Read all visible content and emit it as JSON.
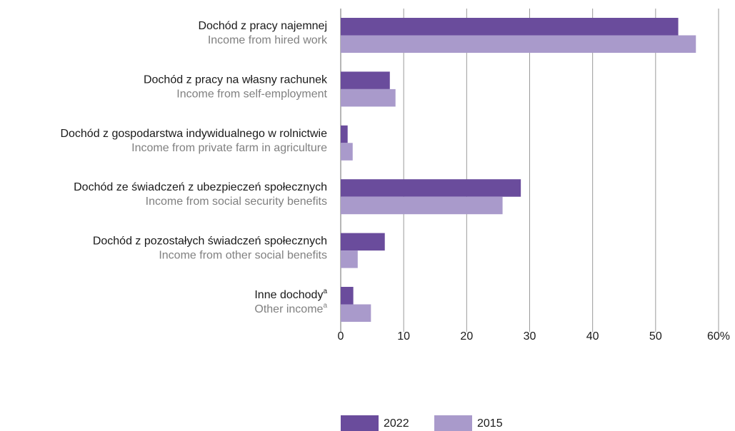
{
  "chart_data": {
    "type": "hbar",
    "categories": [
      {
        "label": "Dochód z pracy najemnej",
        "label_en": "Income from hired work"
      },
      {
        "label": "Dochód z pracy na własny rachunek",
        "label_en": "Income from self-employment"
      },
      {
        "label": "Dochód z gospodarstwa indywidualnego w rolnictwie",
        "label_en": "Income from private farm in agriculture"
      },
      {
        "label": "Dochód ze świadczeń z ubezpieczeń społecznych",
        "label_en": "Income from social security benefits"
      },
      {
        "label": "Dochód z pozostałych świadczeń społecznych",
        "label_en": "Income from other social benefits"
      },
      {
        "label": "Inne dochody",
        "label_en": "Other income",
        "footnote": "a"
      }
    ],
    "series": [
      {
        "name": "2022",
        "color": "#6a4c9c",
        "values": [
          53.6,
          7.8,
          1.1,
          28.6,
          7.0,
          2.0
        ]
      },
      {
        "name": "2015",
        "color": "#a99acb",
        "values": [
          56.4,
          8.7,
          1.9,
          25.7,
          2.7,
          4.8
        ]
      }
    ],
    "xlim": [
      0,
      60
    ],
    "xticks": [
      0,
      10,
      20,
      30,
      40,
      50,
      {
        "value": 60,
        "label": "60%"
      }
    ],
    "grid": true
  }
}
